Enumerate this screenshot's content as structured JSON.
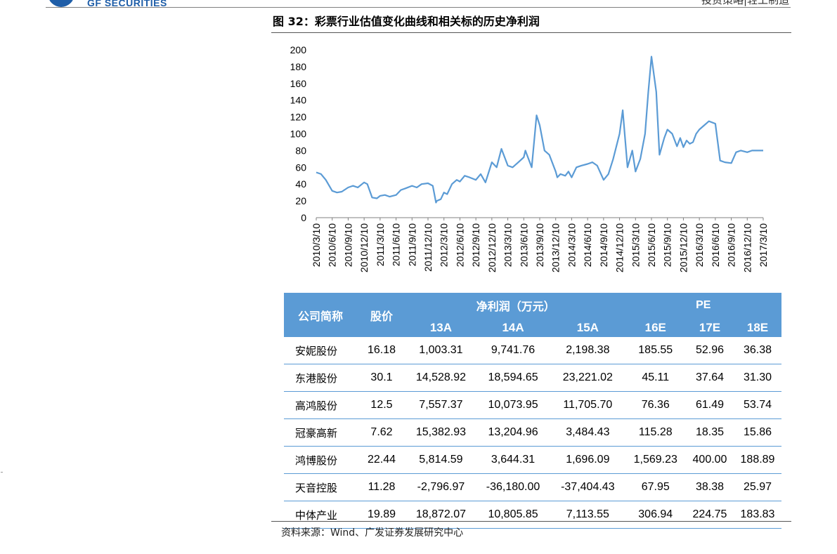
{
  "header": {
    "logo_text": "GF SECURITIES",
    "right_text": "投资策略|轻工制造",
    "brand_color": "#1f5ea8"
  },
  "figure": {
    "title": "图 32：彩票行业估值变化曲线和相关标的历史净利润"
  },
  "chart_data": {
    "type": "line",
    "title": "",
    "xlabel": "",
    "ylabel": "",
    "ylim": [
      0,
      200
    ],
    "yticks": [
      0,
      20,
      40,
      60,
      80,
      100,
      120,
      140,
      160,
      180,
      200
    ],
    "x_tick_labels": [
      "2010/3/10",
      "2010/6/10",
      "2010/9/10",
      "2010/12/10",
      "2011/3/10",
      "2011/6/10",
      "2011/9/10",
      "2011/12/10",
      "2012/3/10",
      "2012/6/10",
      "2012/9/10",
      "2012/12/10",
      "2013/3/10",
      "2013/6/10",
      "2013/9/10",
      "2013/12/10",
      "2014/3/10",
      "2014/6/10",
      "2014/9/10",
      "2014/12/10",
      "2015/3/10",
      "2015/6/10",
      "2015/9/10",
      "2015/12/10",
      "2016/3/10",
      "2016/6/10",
      "2016/9/10",
      "2016/12/10",
      "2017/3/10"
    ],
    "grid": false,
    "line_color": "#5b9bd5",
    "series": [
      {
        "name": "",
        "x": [
          0,
          0.3,
          0.6,
          1.0,
          1.3,
          1.6,
          2.0,
          2.3,
          2.6,
          3.0,
          3.2,
          3.5,
          3.8,
          4.0,
          4.3,
          4.6,
          5.0,
          5.3,
          5.6,
          6.0,
          6.3,
          6.6,
          7.0,
          7.3,
          7.5,
          7.55,
          7.8,
          8.0,
          8.2,
          8.5,
          8.8,
          9.0,
          9.3,
          9.6,
          10.0,
          10.3,
          10.6,
          11.0,
          11.3,
          11.6,
          12.0,
          12.3,
          12.6,
          13.0,
          13.1,
          13.2,
          13.5,
          13.8,
          14.0,
          14.3,
          14.6,
          15.0,
          15.1,
          15.3,
          15.6,
          15.8,
          16.0,
          16.3,
          16.6,
          17.0,
          17.3,
          17.6,
          18.0,
          18.3,
          18.6,
          19.0,
          19.2,
          19.5,
          19.8,
          20.0,
          20.3,
          20.6,
          20.8,
          21.0,
          21.3,
          21.5,
          21.8,
          22.0,
          22.3,
          22.6,
          22.8,
          23.0,
          23.2,
          23.4,
          23.6,
          23.8,
          24.0,
          24.3,
          24.6,
          25.0,
          25.3,
          25.6,
          26.0,
          26.3,
          26.6,
          27.0,
          27.3,
          27.6,
          27.8,
          28.0
        ],
        "values": [
          54,
          52,
          45,
          32,
          30,
          31,
          36,
          38,
          36,
          42,
          40,
          24,
          23,
          26,
          27,
          25,
          27,
          33,
          35,
          38,
          36,
          40,
          41,
          38,
          18,
          20,
          22,
          30,
          28,
          40,
          45,
          43,
          50,
          48,
          45,
          52,
          42,
          66,
          60,
          82,
          62,
          60,
          65,
          72,
          80,
          75,
          60,
          122,
          110,
          80,
          75,
          55,
          48,
          52,
          50,
          55,
          48,
          60,
          62,
          64,
          66,
          62,
          45,
          52,
          70,
          100,
          128,
          60,
          80,
          55,
          70,
          100,
          150,
          192,
          150,
          75,
          95,
          105,
          100,
          85,
          95,
          84,
          92,
          88,
          90,
          100,
          105,
          110,
          115,
          112,
          68,
          66,
          65,
          78,
          80,
          78,
          80,
          80,
          80,
          80
        ]
      }
    ]
  },
  "table": {
    "header": {
      "company": "公司简称",
      "price": "股价",
      "profit_group": "净利润（万元）",
      "pe_group": "PE",
      "cols": [
        "13A",
        "14A",
        "15A",
        "16E",
        "17E",
        "18E"
      ]
    },
    "rows": [
      {
        "name": "安妮股份",
        "price": "16.18",
        "p13": "1,003.31",
        "p14": "9,741.76",
        "p15": "2,198.38",
        "pe16": "185.55",
        "pe17": "52.96",
        "pe18": "36.38"
      },
      {
        "name": "东港股份",
        "price": "30.1",
        "p13": "14,528.92",
        "p14": "18,594.65",
        "p15": "23,221.02",
        "pe16": "45.11",
        "pe17": "37.64",
        "pe18": "31.30"
      },
      {
        "name": "高鸿股份",
        "price": "12.5",
        "p13": "7,557.37",
        "p14": "10,073.95",
        "p15": "11,705.70",
        "pe16": "76.36",
        "pe17": "61.49",
        "pe18": "53.74"
      },
      {
        "name": "冠豪高新",
        "price": "7.62",
        "p13": "15,382.93",
        "p14": "13,204.96",
        "p15": "3,484.43",
        "pe16": "115.28",
        "pe17": "18.35",
        "pe18": "15.86"
      },
      {
        "name": "鸿博股份",
        "price": "22.44",
        "p13": "5,814.59",
        "p14": "3,644.31",
        "p15": "1,696.09",
        "pe16": "1,569.23",
        "pe17": "400.00",
        "pe18": "188.89"
      },
      {
        "name": "天音控股",
        "price": "11.28",
        "p13": "-2,796.97",
        "p14": "-36,180.00",
        "p15": "-37,404.43",
        "pe16": "67.95",
        "pe17": "38.38",
        "pe18": "25.97"
      },
      {
        "name": "中体产业",
        "price": "19.89",
        "p13": "18,872.07",
        "p14": "10,805.85",
        "p15": "7,113.55",
        "pe16": "306.94",
        "pe17": "224.75",
        "pe18": "183.83"
      }
    ]
  },
  "source": "资料来源：Wind、广发证券发展研究中心"
}
